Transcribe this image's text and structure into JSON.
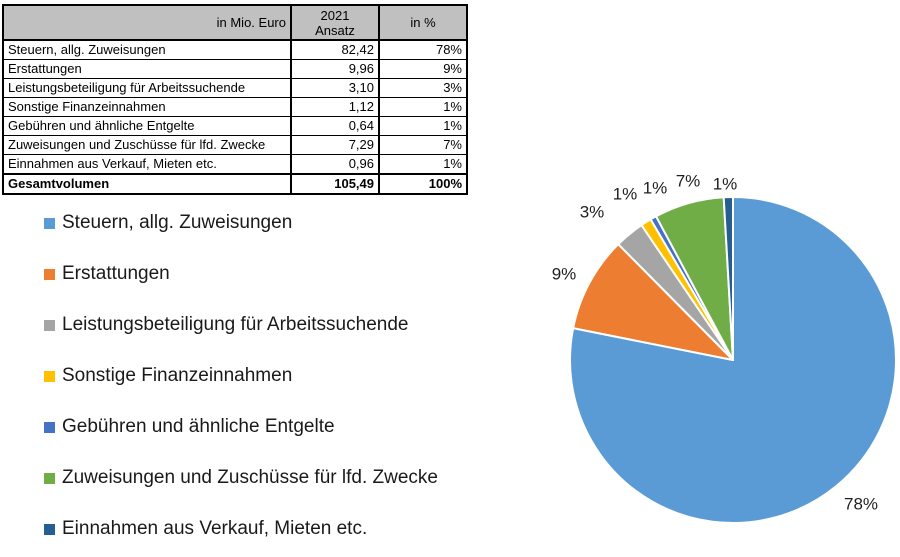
{
  "table": {
    "header": {
      "col1": "in Mio. Euro",
      "col2_line1": "2021",
      "col2_line2": "Ansatz",
      "col3": "in %",
      "header_bg": "#c0c0c0"
    },
    "rows": [
      {
        "label": "Steuern, allg. Zuweisungen",
        "value": "82,42",
        "pct": "78%"
      },
      {
        "label": "Erstattungen",
        "value": "9,96",
        "pct": "9%"
      },
      {
        "label": "Leistungsbeteiligung für Arbeitssuchende",
        "value": "3,10",
        "pct": "3%"
      },
      {
        "label": "Sonstige Finanzeinnahmen",
        "value": "1,12",
        "pct": "1%"
      },
      {
        "label": "Gebühren und ähnliche Entgelte",
        "value": "0,64",
        "pct": "1%"
      },
      {
        "label": "Zuweisungen und Zuschüsse für lfd. Zwecke",
        "value": "7,29",
        "pct": "7%"
      },
      {
        "label": "Einnahmen aus Verkauf, Mieten etc.",
        "value": "0,96",
        "pct": "1%"
      }
    ],
    "total_row": {
      "label": "Gesamtvolumen",
      "value": "105,49",
      "pct": "100%"
    }
  },
  "legend": {
    "items": [
      {
        "label": "Steuern, allg. Zuweisungen",
        "color": "#5B9BD5"
      },
      {
        "label": "Erstattungen",
        "color": "#ED7D31"
      },
      {
        "label": "Leistungsbeteiligung für Arbeitssuchende",
        "color": "#A5A5A5"
      },
      {
        "label": "Sonstige Finanzeinnahmen",
        "color": "#FFC000"
      },
      {
        "label": "Gebühren und ähnliche Entgelte",
        "color": "#4472C4"
      },
      {
        "label": "Zuweisungen und Zuschüsse für lfd. Zwecke",
        "color": "#70AD47"
      },
      {
        "label": "Einnahmen aus Verkauf, Mieten etc.",
        "color": "#255E91"
      }
    ]
  },
  "chart_data": {
    "type": "pie",
    "unit": "in Mio. Euro",
    "categories": [
      "Steuern, allg. Zuweisungen",
      "Erstattungen",
      "Leistungsbeteiligung für Arbeitssuchende",
      "Sonstige Finanzeinnahmen",
      "Gebühren und ähnliche Entgelte",
      "Zuweisungen und Zuschüsse für lfd. Zwecke",
      "Einnahmen aus Verkauf, Mieten etc."
    ],
    "values": [
      82.42,
      9.96,
      3.1,
      1.12,
      0.64,
      7.29,
      0.96
    ],
    "total": 105.49,
    "percent_labels": [
      "78%",
      "9%",
      "3%",
      "1%",
      "1%",
      "7%",
      "1%"
    ],
    "colors": [
      "#5B9BD5",
      "#ED7D31",
      "#A5A5A5",
      "#FFC000",
      "#4472C4",
      "#70AD47",
      "#255E91"
    ],
    "start_angle_deg": 0,
    "direction": "clockwise",
    "data_label_position": "outside-end",
    "legend_position": "left",
    "slice_border_color": "#FFFFFF"
  }
}
